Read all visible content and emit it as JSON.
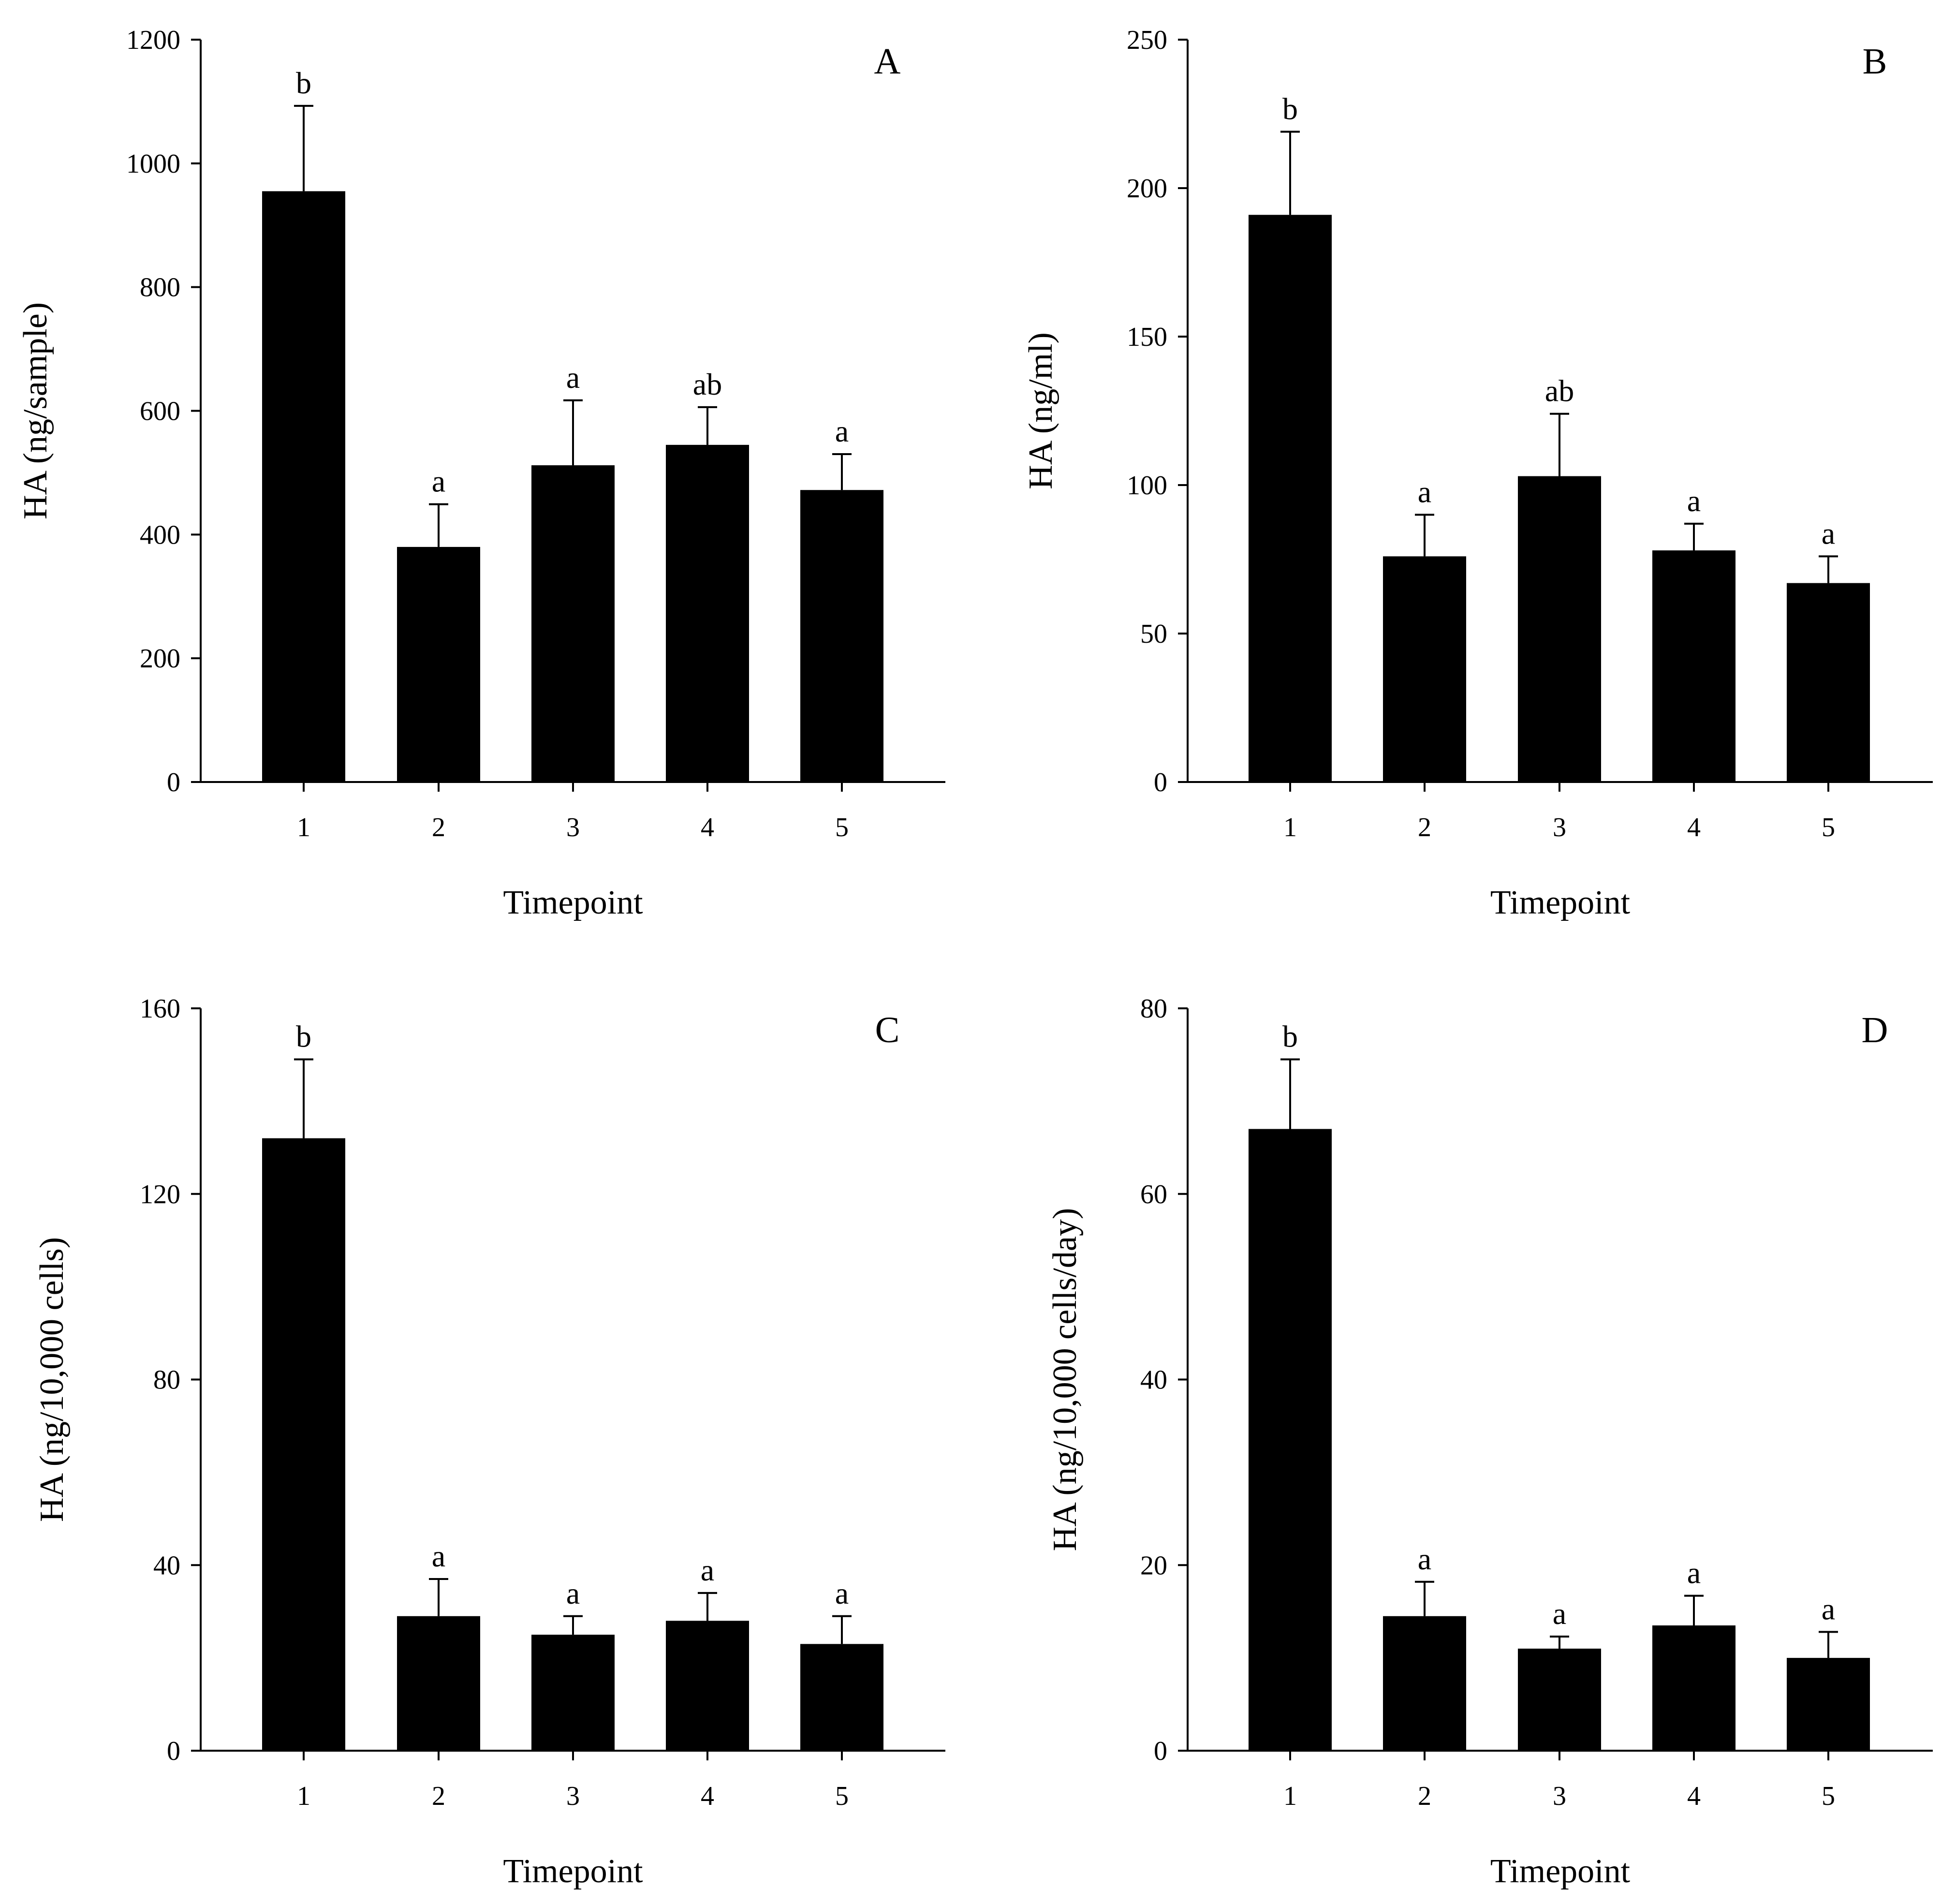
{
  "chart_data": [
    {
      "type": "bar",
      "panel": "A",
      "xlabel": "Timepoint",
      "ylabel": "HA (ng/sample)",
      "categories": [
        "1",
        "2",
        "3",
        "4",
        "5"
      ],
      "values": [
        955,
        380,
        512,
        545,
        472
      ],
      "error_upper": [
        1093,
        449,
        617,
        606,
        530
      ],
      "significance": [
        "b",
        "a",
        "a",
        "ab",
        "a"
      ],
      "ylim": [
        0,
        1200
      ],
      "yticks": [
        "0",
        "200",
        "400",
        "600",
        "800",
        "1000",
        "1200"
      ]
    },
    {
      "type": "bar",
      "panel": "B",
      "xlabel": "Timepoint",
      "ylabel": "HA (ng/ml)",
      "categories": [
        "1",
        "2",
        "3",
        "4",
        "5"
      ],
      "values": [
        191,
        76,
        103,
        78,
        67
      ],
      "error_upper": [
        219,
        90,
        124,
        87,
        76
      ],
      "significance": [
        "b",
        "a",
        "ab",
        "a",
        "a"
      ],
      "ylim": [
        0,
        250
      ],
      "yticks": [
        "0",
        "50",
        "100",
        "150",
        "200",
        "250"
      ]
    },
    {
      "type": "bar",
      "panel": "C",
      "xlabel": "Timepoint",
      "ylabel": "HA (ng/10,000 cells)",
      "categories": [
        "1",
        "2",
        "3",
        "4",
        "5"
      ],
      "values": [
        132,
        29,
        25,
        28,
        23
      ],
      "error_upper": [
        149,
        37,
        29,
        34,
        29
      ],
      "significance": [
        "b",
        "a",
        "a",
        "a",
        "a"
      ],
      "ylim": [
        0,
        160
      ],
      "yticks": [
        "0",
        "40",
        "80",
        "120",
        "160"
      ]
    },
    {
      "type": "bar",
      "panel": "D",
      "xlabel": "Timepoint",
      "ylabel": "HA (ng/10,000 cells/day)",
      "categories": [
        "1",
        "2",
        "3",
        "4",
        "5"
      ],
      "values": [
        67,
        14.5,
        11,
        13.5,
        10
      ],
      "error_upper": [
        74.5,
        18.2,
        12.3,
        16.7,
        12.8
      ],
      "significance": [
        "b",
        "a",
        "a",
        "a",
        "a"
      ],
      "ylim": [
        0,
        80
      ],
      "yticks": [
        "0",
        "20",
        "40",
        "60",
        "80"
      ]
    }
  ],
  "colors": {
    "bar": "#000000",
    "axis": "#000000",
    "background": "#ffffff"
  }
}
